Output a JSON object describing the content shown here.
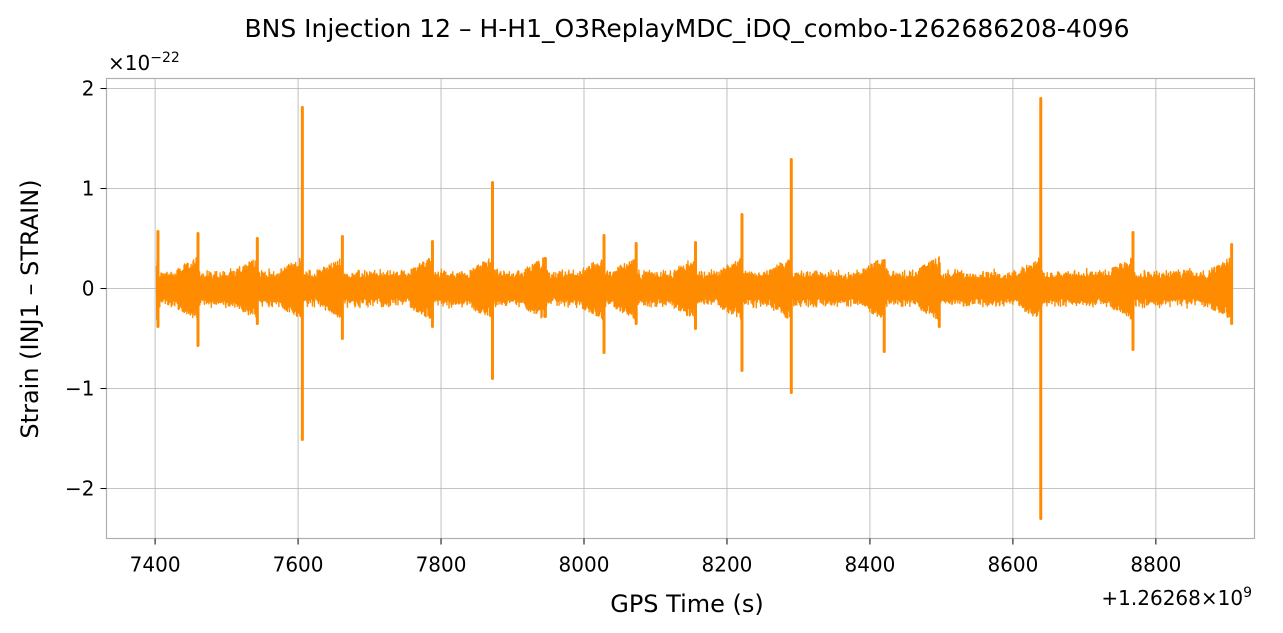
{
  "chart_data": {
    "type": "line",
    "title": "BNS Injection 12 – H-H1_O3ReplayMDC_iDQ_combo-1262686208-4096",
    "xlabel": "GPS Time (s)",
    "ylabel": "Strain (INJ1 – STRAIN)",
    "x_offset_label": "+1.26268×10",
    "x_offset_exponent": "9",
    "y_scale_label": "×10",
    "y_scale_exponent": "−22",
    "xlim": [
      7332,
      8938
    ],
    "ylim": [
      -2.5,
      2.1
    ],
    "x_ticks": [
      7400,
      7600,
      7800,
      8000,
      8200,
      8400,
      8600,
      8800
    ],
    "x_tick_labels": [
      "7400",
      "7600",
      "7800",
      "8000",
      "8200",
      "8400",
      "8600",
      "8800"
    ],
    "y_ticks": [
      -2,
      -1,
      0,
      1,
      2
    ],
    "y_tick_labels": [
      "−2",
      "−1",
      "0",
      "1",
      "2"
    ],
    "grid": true,
    "series": [
      {
        "color": "#ff8c00",
        "x_range": [
          7402,
          8907
        ],
        "baseline_amplitude": 0.2,
        "spikes": [
          {
            "x": 7404,
            "high": 0.57,
            "low": -0.38
          },
          {
            "x": 7460,
            "high": 0.55,
            "low": -0.57
          },
          {
            "x": 7543,
            "high": 0.5,
            "low": -0.35
          },
          {
            "x": 7606,
            "high": 1.81,
            "low": -1.51
          },
          {
            "x": 7662,
            "high": 0.52,
            "low": -0.5
          },
          {
            "x": 7788,
            "high": 0.47,
            "low": -0.38
          },
          {
            "x": 7872,
            "high": 1.06,
            "low": -0.9
          },
          {
            "x": 7946,
            "high": 0.3,
            "low": -0.28
          },
          {
            "x": 8028,
            "high": 0.53,
            "low": -0.64
          },
          {
            "x": 8073,
            "high": 0.45,
            "low": -0.35
          },
          {
            "x": 8156,
            "high": 0.46,
            "low": -0.4
          },
          {
            "x": 8221,
            "high": 0.74,
            "low": -0.82
          },
          {
            "x": 8290,
            "high": 1.29,
            "low": -1.04
          },
          {
            "x": 8420,
            "high": 0.28,
            "low": -0.63
          },
          {
            "x": 8497,
            "high": 0.25,
            "low": -0.38
          },
          {
            "x": 8639,
            "high": 1.9,
            "low": -2.3
          },
          {
            "x": 8768,
            "high": 0.56,
            "low": -0.61
          },
          {
            "x": 8906,
            "high": 0.44,
            "low": -0.35
          }
        ]
      }
    ]
  }
}
